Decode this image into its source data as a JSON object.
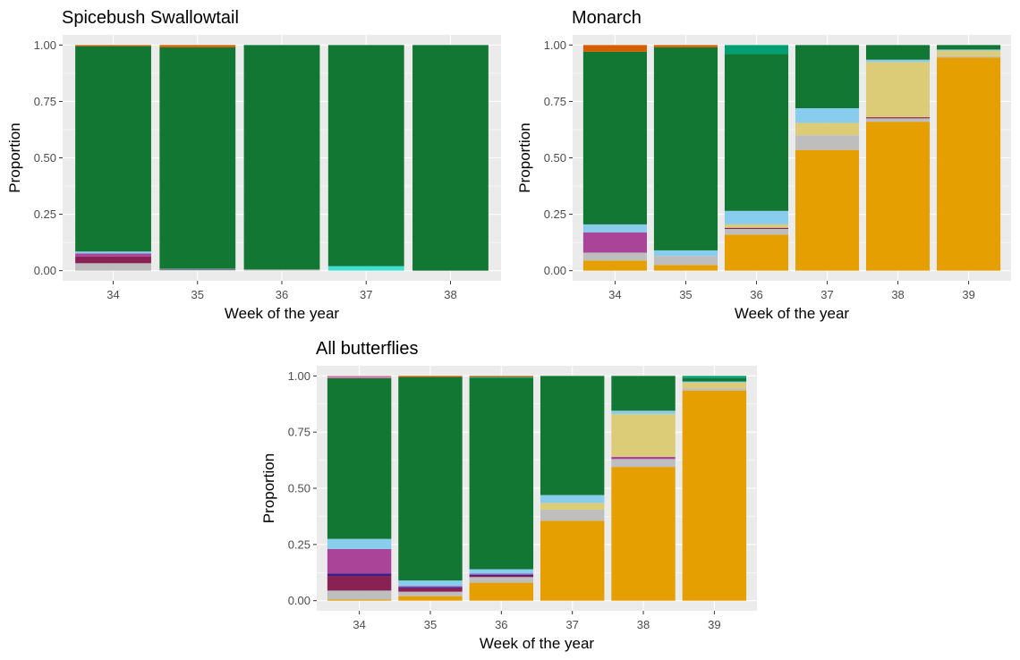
{
  "chart_data": [
    {
      "type": "bar",
      "title": "Spicebush Swallowtail",
      "xlabel": "Week of the year",
      "ylabel": "Proportion",
      "ylim": [
        0,
        1
      ],
      "yticks": [
        "0.00",
        "0.25",
        "0.50",
        "0.75",
        "1.00"
      ],
      "categories": [
        "34",
        "35",
        "36",
        "37",
        "38"
      ],
      "stacked": true,
      "grid": true,
      "series": [
        {
          "color": "#E69F00",
          "values": [
            0.0,
            0.0,
            0.0,
            0.0,
            0.0
          ]
        },
        {
          "color": "#BEBEBE",
          "values": [
            0.033,
            0.003,
            0.005,
            0.0,
            0.0
          ]
        },
        {
          "color": "#882255",
          "values": [
            0.03,
            0.002,
            0.0,
            0.0,
            0.0
          ]
        },
        {
          "color": "#AA4499",
          "values": [
            0.013,
            0.0,
            0.0,
            0.0,
            0.0
          ]
        },
        {
          "color": "#88CCEE",
          "values": [
            0.009,
            0.003,
            0.0,
            0.0,
            0.0
          ]
        },
        {
          "color": "#40E0D0",
          "values": [
            0.0,
            0.0,
            0.0,
            0.02,
            0.0
          ]
        },
        {
          "color": "#117733",
          "values": [
            0.91,
            0.982,
            0.995,
            0.98,
            1.0
          ]
        },
        {
          "color": "#D55E00",
          "values": [
            0.005,
            0.01,
            0.0,
            0.0,
            0.0
          ]
        }
      ]
    },
    {
      "type": "bar",
      "title": "Monarch",
      "xlabel": "Week of the year",
      "ylabel": "Proportion",
      "ylim": [
        0,
        1
      ],
      "yticks": [
        "0.00",
        "0.25",
        "0.50",
        "0.75",
        "1.00"
      ],
      "categories": [
        "34",
        "35",
        "36",
        "37",
        "38",
        "39"
      ],
      "stacked": true,
      "grid": true,
      "series": [
        {
          "color": "#E69F00",
          "values": [
            0.045,
            0.025,
            0.16,
            0.535,
            0.66,
            0.945
          ]
        },
        {
          "color": "#BEBEBE",
          "values": [
            0.035,
            0.04,
            0.025,
            0.065,
            0.015,
            0.005
          ]
        },
        {
          "color": "#882255",
          "values": [
            0.0,
            0.0,
            0.005,
            0.0,
            0.005,
            0.0
          ]
        },
        {
          "color": "#AA4499",
          "values": [
            0.09,
            0.0,
            0.0,
            0.0,
            0.0,
            0.0
          ]
        },
        {
          "color": "#DDCC77",
          "values": [
            0.0,
            0.0,
            0.015,
            0.055,
            0.245,
            0.025
          ]
        },
        {
          "color": "#88CCEE",
          "values": [
            0.035,
            0.025,
            0.06,
            0.065,
            0.01,
            0.005
          ]
        },
        {
          "color": "#117733",
          "values": [
            0.765,
            0.9,
            0.695,
            0.28,
            0.065,
            0.02
          ]
        },
        {
          "color": "#009E73",
          "values": [
            0.0,
            0.0,
            0.04,
            0.0,
            0.0,
            0.0
          ]
        },
        {
          "color": "#D55E00",
          "values": [
            0.03,
            0.01,
            0.0,
            0.0,
            0.0,
            0.0
          ]
        }
      ]
    },
    {
      "type": "bar",
      "title": "All butterflies",
      "xlabel": "Week of the year",
      "ylabel": "Proportion",
      "ylim": [
        0,
        1
      ],
      "yticks": [
        "0.00",
        "0.25",
        "0.50",
        "0.75",
        "1.00"
      ],
      "categories": [
        "34",
        "35",
        "36",
        "37",
        "38",
        "39"
      ],
      "stacked": true,
      "grid": true,
      "series": [
        {
          "color": "#E69F00",
          "values": [
            0.005,
            0.02,
            0.08,
            0.355,
            0.595,
            0.935
          ]
        },
        {
          "color": "#BEBEBE",
          "values": [
            0.04,
            0.02,
            0.025,
            0.05,
            0.035,
            0.01
          ]
        },
        {
          "color": "#882255",
          "values": [
            0.065,
            0.015,
            0.005,
            0.0,
            0.0,
            0.0
          ]
        },
        {
          "color": "#332288",
          "values": [
            0.01,
            0.005,
            0.005,
            0.0,
            0.0,
            0.0
          ]
        },
        {
          "color": "#AA4499",
          "values": [
            0.11,
            0.005,
            0.005,
            0.0,
            0.01,
            0.0
          ]
        },
        {
          "color": "#DDCC77",
          "values": [
            0.0,
            0.0,
            0.0,
            0.03,
            0.19,
            0.025
          ]
        },
        {
          "color": "#88CCEE",
          "values": [
            0.045,
            0.025,
            0.02,
            0.035,
            0.015,
            0.005
          ]
        },
        {
          "color": "#117733",
          "values": [
            0.715,
            0.905,
            0.85,
            0.53,
            0.155,
            0.015
          ]
        },
        {
          "color": "#009E73",
          "values": [
            0.0,
            0.0,
            0.005,
            0.0,
            0.0,
            0.01
          ]
        },
        {
          "color": "#D55E00",
          "values": [
            0.0,
            0.005,
            0.005,
            0.0,
            0.0,
            0.0
          ]
        },
        {
          "color": "#CC79A7",
          "values": [
            0.01,
            0.0,
            0.0,
            0.0,
            0.0,
            0.0
          ]
        }
      ]
    }
  ]
}
